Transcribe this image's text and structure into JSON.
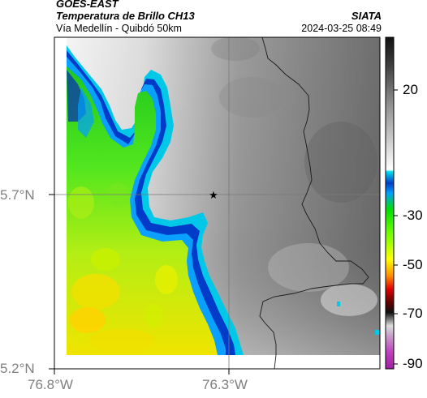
{
  "header": {
    "satellite": "GOES-EAST",
    "product": "Temperatura de Brillo CH13",
    "region": "Vía Medellín - Quibdó 50km",
    "org": "SIATA",
    "datetime": "2024-03-25 08:49"
  },
  "axes": {
    "y_ticks": [
      "5.7°N",
      "5.2°N"
    ],
    "x_ticks": [
      "76.8°W",
      "76.3°W"
    ]
  },
  "colorbar": {
    "ticks": [
      "20",
      "-30",
      "-50",
      "-70",
      "-90"
    ]
  },
  "marker": {
    "symbol": "★",
    "name": "station-star"
  }
}
